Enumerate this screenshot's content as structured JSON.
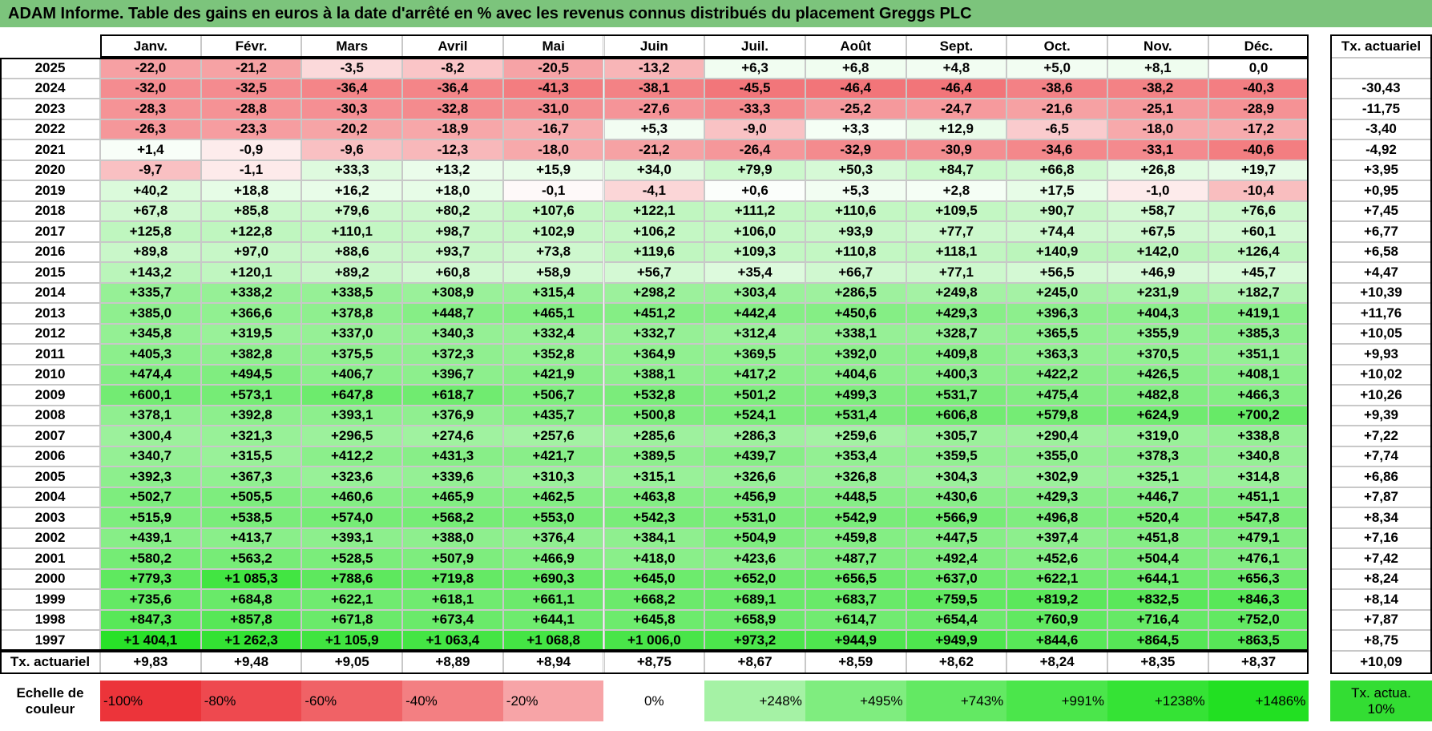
{
  "title": "ADAM Informe. Table des gains en euros à la date d'arrêté en % avec les revenus connus distribués du placement Greggs PLC",
  "table": {
    "header": [
      "Janv.",
      "Févr.",
      "Mars",
      "Avril",
      "Mai",
      "Juin",
      "Juil.",
      "Août",
      "Sept.",
      "Oct.",
      "Nov.",
      "Déc."
    ],
    "rate_header": "Tx. actuariel",
    "rows": [
      {
        "year": "2025",
        "months": [
          "-22,0",
          "-21,2",
          "-3,5",
          "-8,2",
          "-20,5",
          "-13,2",
          "+6,3",
          "+6,8",
          "+4,8",
          "+5,0",
          "+8,1",
          "0,0"
        ]
      },
      {
        "year": "2024",
        "months": [
          "-32,0",
          "-32,5",
          "-36,4",
          "-36,4",
          "-41,3",
          "-38,1",
          "-45,5",
          "-46,4",
          "-46,4",
          "-38,6",
          "-38,2",
          "-40,3"
        ],
        "rate": "-30,43"
      },
      {
        "year": "2023",
        "months": [
          "-28,3",
          "-28,8",
          "-30,3",
          "-32,8",
          "-31,0",
          "-27,6",
          "-33,3",
          "-25,2",
          "-24,7",
          "-21,6",
          "-25,1",
          "-28,9"
        ],
        "rate": "-11,75"
      },
      {
        "year": "2022",
        "months": [
          "-26,3",
          "-23,3",
          "-20,2",
          "-18,9",
          "-16,7",
          "+5,3",
          "-9,0",
          "+3,3",
          "+12,9",
          "-6,5",
          "-18,0",
          "-17,2"
        ],
        "rate": "-3,40"
      },
      {
        "year": "2021",
        "months": [
          "+1,4",
          "-0,9",
          "-9,6",
          "-12,3",
          "-18,0",
          "-21,2",
          "-26,4",
          "-32,9",
          "-30,9",
          "-34,6",
          "-33,1",
          "-40,6"
        ],
        "rate": "-4,92"
      },
      {
        "year": "2020",
        "months": [
          "-9,7",
          "-1,1",
          "+33,3",
          "+13,2",
          "+15,9",
          "+34,0",
          "+79,9",
          "+50,3",
          "+84,7",
          "+66,8",
          "+26,8",
          "+19,7"
        ],
        "rate": "+3,95"
      },
      {
        "year": "2019",
        "months": [
          "+40,2",
          "+18,8",
          "+16,2",
          "+18,0",
          "-0,1",
          "-4,1",
          "+0,6",
          "+5,3",
          "+2,8",
          "+17,5",
          "-1,0",
          "-10,4"
        ],
        "rate": "+0,95"
      },
      {
        "year": "2018",
        "months": [
          "+67,8",
          "+85,8",
          "+79,6",
          "+80,2",
          "+107,6",
          "+122,1",
          "+111,2",
          "+110,6",
          "+109,5",
          "+90,7",
          "+58,7",
          "+76,6"
        ],
        "rate": "+7,45"
      },
      {
        "year": "2017",
        "months": [
          "+125,8",
          "+122,8",
          "+110,1",
          "+98,7",
          "+102,9",
          "+106,2",
          "+106,0",
          "+93,9",
          "+77,7",
          "+74,4",
          "+67,5",
          "+60,1"
        ],
        "rate": "+6,77"
      },
      {
        "year": "2016",
        "months": [
          "+89,8",
          "+97,0",
          "+88,6",
          "+93,7",
          "+73,8",
          "+119,6",
          "+109,3",
          "+110,8",
          "+118,1",
          "+140,9",
          "+142,0",
          "+126,4"
        ],
        "rate": "+6,58"
      },
      {
        "year": "2015",
        "months": [
          "+143,2",
          "+120,1",
          "+89,2",
          "+60,8",
          "+58,9",
          "+56,7",
          "+35,4",
          "+66,7",
          "+77,1",
          "+56,5",
          "+46,9",
          "+45,7"
        ],
        "rate": "+4,47"
      },
      {
        "year": "2014",
        "months": [
          "+335,7",
          "+338,2",
          "+338,5",
          "+308,9",
          "+315,4",
          "+298,2",
          "+303,4",
          "+286,5",
          "+249,8",
          "+245,0",
          "+231,9",
          "+182,7"
        ],
        "rate": "+10,39"
      },
      {
        "year": "2013",
        "months": [
          "+385,0",
          "+366,6",
          "+378,8",
          "+448,7",
          "+465,1",
          "+451,2",
          "+442,4",
          "+450,6",
          "+429,3",
          "+396,3",
          "+404,3",
          "+419,1"
        ],
        "rate": "+11,76"
      },
      {
        "year": "2012",
        "months": [
          "+345,8",
          "+319,5",
          "+337,0",
          "+340,3",
          "+332,4",
          "+332,7",
          "+312,4",
          "+338,1",
          "+328,7",
          "+365,5",
          "+355,9",
          "+385,3"
        ],
        "rate": "+10,05"
      },
      {
        "year": "2011",
        "months": [
          "+405,3",
          "+382,8",
          "+375,5",
          "+372,3",
          "+352,8",
          "+364,9",
          "+369,5",
          "+392,0",
          "+409,8",
          "+363,3",
          "+370,5",
          "+351,1"
        ],
        "rate": "+9,93"
      },
      {
        "year": "2010",
        "months": [
          "+474,4",
          "+494,5",
          "+406,7",
          "+396,7",
          "+421,9",
          "+388,1",
          "+417,2",
          "+404,6",
          "+400,3",
          "+422,2",
          "+426,5",
          "+408,1"
        ],
        "rate": "+10,02"
      },
      {
        "year": "2009",
        "months": [
          "+600,1",
          "+573,1",
          "+647,8",
          "+618,7",
          "+506,7",
          "+532,8",
          "+501,2",
          "+499,3",
          "+531,7",
          "+475,4",
          "+482,8",
          "+466,3"
        ],
        "rate": "+10,26"
      },
      {
        "year": "2008",
        "months": [
          "+378,1",
          "+392,8",
          "+393,1",
          "+376,9",
          "+435,7",
          "+500,8",
          "+524,1",
          "+531,4",
          "+606,8",
          "+579,8",
          "+624,9",
          "+700,2"
        ],
        "rate": "+9,39"
      },
      {
        "year": "2007",
        "months": [
          "+300,4",
          "+321,3",
          "+296,5",
          "+274,6",
          "+257,6",
          "+285,6",
          "+286,3",
          "+259,6",
          "+305,7",
          "+290,4",
          "+319,0",
          "+338,8"
        ],
        "rate": "+7,22"
      },
      {
        "year": "2006",
        "months": [
          "+340,7",
          "+315,5",
          "+412,2",
          "+431,3",
          "+421,7",
          "+389,5",
          "+439,7",
          "+353,4",
          "+359,5",
          "+355,0",
          "+378,3",
          "+340,8"
        ],
        "rate": "+7,74"
      },
      {
        "year": "2005",
        "months": [
          "+392,3",
          "+367,3",
          "+323,6",
          "+339,6",
          "+310,3",
          "+315,1",
          "+326,6",
          "+326,8",
          "+304,3",
          "+302,9",
          "+325,1",
          "+314,8"
        ],
        "rate": "+6,86"
      },
      {
        "year": "2004",
        "months": [
          "+502,7",
          "+505,5",
          "+460,6",
          "+465,9",
          "+462,5",
          "+463,8",
          "+456,9",
          "+448,5",
          "+430,6",
          "+429,3",
          "+446,7",
          "+451,1"
        ],
        "rate": "+7,87"
      },
      {
        "year": "2003",
        "months": [
          "+515,9",
          "+538,5",
          "+574,0",
          "+568,2",
          "+553,0",
          "+542,3",
          "+531,0",
          "+542,9",
          "+566,9",
          "+496,8",
          "+520,4",
          "+547,8"
        ],
        "rate": "+8,34"
      },
      {
        "year": "2002",
        "months": [
          "+439,1",
          "+413,7",
          "+393,1",
          "+388,0",
          "+376,4",
          "+384,1",
          "+504,9",
          "+459,8",
          "+447,5",
          "+397,4",
          "+451,8",
          "+479,1"
        ],
        "rate": "+7,16"
      },
      {
        "year": "2001",
        "months": [
          "+580,2",
          "+563,2",
          "+528,5",
          "+507,9",
          "+466,9",
          "+418,0",
          "+423,6",
          "+487,7",
          "+492,4",
          "+452,6",
          "+504,4",
          "+476,1"
        ],
        "rate": "+7,42"
      },
      {
        "year": "2000",
        "months": [
          "+779,3",
          "+1 085,3",
          "+788,6",
          "+719,8",
          "+690,3",
          "+645,0",
          "+652,0",
          "+656,5",
          "+637,0",
          "+622,1",
          "+644,1",
          "+656,3"
        ],
        "rate": "+8,24"
      },
      {
        "year": "1999",
        "months": [
          "+735,6",
          "+684,8",
          "+622,1",
          "+618,1",
          "+661,1",
          "+668,2",
          "+689,1",
          "+683,7",
          "+759,5",
          "+819,2",
          "+832,5",
          "+846,3"
        ],
        "rate": "+8,14"
      },
      {
        "year": "1998",
        "months": [
          "+847,3",
          "+857,8",
          "+671,8",
          "+673,4",
          "+644,1",
          "+645,8",
          "+658,9",
          "+614,7",
          "+654,4",
          "+760,9",
          "+716,4",
          "+752,0"
        ],
        "rate": "+7,87"
      },
      {
        "year": "1997",
        "months": [
          "+1 404,1",
          "+1 262,3",
          "+1 105,9",
          "+1 063,4",
          "+1 068,8",
          "+1 006,0",
          "+973,2",
          "+944,9",
          "+949,9",
          "+844,6",
          "+864,5",
          "+863,5"
        ],
        "rate": "+8,75"
      }
    ],
    "footer": {
      "label": "Tx. actuariel",
      "months": [
        "+9,83",
        "+9,48",
        "+9,05",
        "+8,89",
        "+8,94",
        "+8,75",
        "+8,67",
        "+8,59",
        "+8,62",
        "+8,24",
        "+8,35",
        "+8,37"
      ],
      "rate": "+10,09"
    }
  },
  "legend": {
    "label": "Echelle de couleur",
    "steps": [
      "-100%",
      "-80%",
      "-60%",
      "-40%",
      "-20%",
      "0%",
      "+248%",
      "+495%",
      "+743%",
      "+991%",
      "+1238%",
      "+1486%"
    ],
    "rate": "Tx. actua. 10%"
  }
}
